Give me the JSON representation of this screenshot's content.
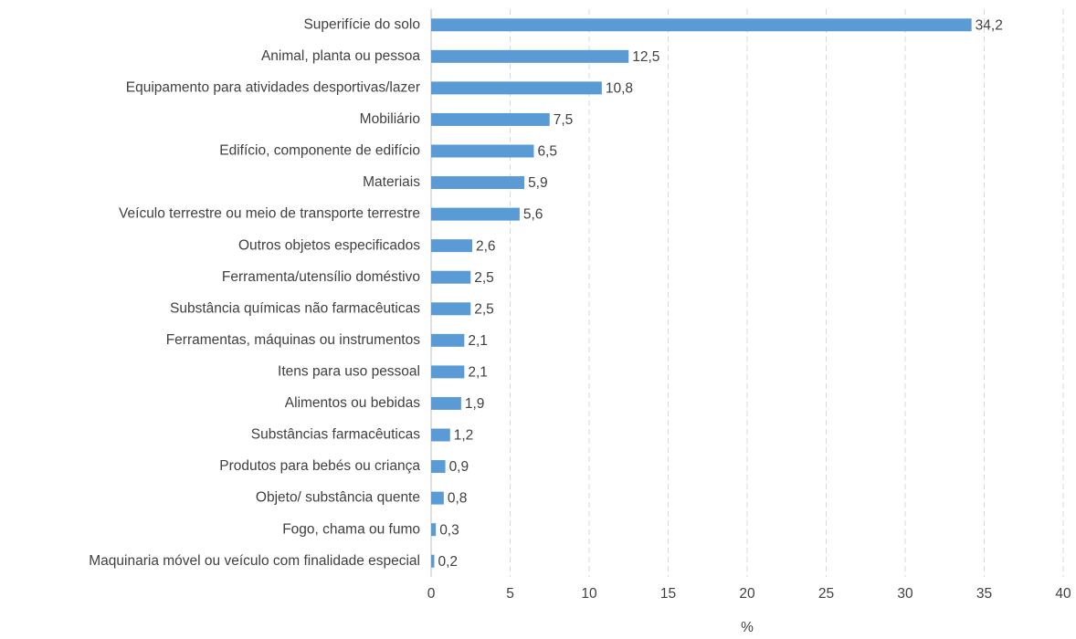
{
  "chart_data": {
    "type": "barh",
    "categories": [
      "Superifície do solo",
      "Animal, planta ou pessoa",
      "Equipamento para atividades desportivas/lazer",
      "Mobiliário",
      "Edifício, componente de edifício",
      "Materiais",
      "Veículo terrestre ou meio de transporte terrestre",
      "Outros objetos especificados",
      "Ferramenta/utensílio doméstivo",
      "Substância químicas não farmacêuticas",
      "Ferramentas, máquinas ou instrumentos",
      "Itens para uso pessoal",
      "Alimentos ou bebidas",
      "Substâncias farmacêuticas",
      "Produtos para bebés ou criança",
      "Objeto/ substância quente",
      "Fogo, chama ou fumo",
      "Maquinaria móvel ou veículo com finalidade especial"
    ],
    "values": [
      34.2,
      12.5,
      10.8,
      7.5,
      6.5,
      5.9,
      5.6,
      2.6,
      2.5,
      2.5,
      2.1,
      2.1,
      1.9,
      1.2,
      0.9,
      0.8,
      0.3,
      0.2
    ],
    "value_labels": [
      "34,2",
      "12,5",
      "10,8",
      "7,5",
      "6,5",
      "5,9",
      "5,6",
      "2,6",
      "2,5",
      "2,5",
      "2,1",
      "2,1",
      "1,9",
      "1,2",
      "0,9",
      "0,8",
      "0,3",
      "0,2"
    ],
    "color": "#5b9bd5",
    "xlim": [
      0,
      40
    ],
    "xticks": [
      0,
      5,
      10,
      15,
      20,
      25,
      30,
      35,
      40
    ],
    "xlabel": "%",
    "grid": true
  }
}
